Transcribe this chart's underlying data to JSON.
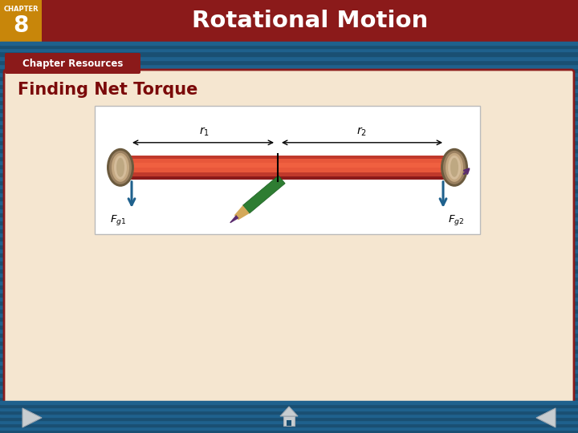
{
  "title": "Rotational Motion",
  "chapter_label": "CHAPTER",
  "chapter_number": "8",
  "section_label": "Chapter Resources",
  "subtitle": "Finding Net Torque",
  "header_bg_color": "#8B1A1A",
  "header_text_color": "#FFFFFF",
  "chapter_box_color": "#C8860A",
  "section_tab_color": "#8B1A1A",
  "section_tab_text_color": "#FFFFFF",
  "nav_bar_color": "#1A4F72",
  "nav_stripe_color": "#1F618D",
  "main_bg_color": "#F5E6D0",
  "main_border_color": "#8B1A1A",
  "subtitle_color": "#7B0A0A",
  "content_bg_color": "#FFFFFF",
  "content_border_color": "#CCCCCC",
  "arrow_color": "#1F618D",
  "rod_color_top": "#B03A2E",
  "rod_color_mid": "#E8573A",
  "rod_color_bot": "#B03A2E",
  "pencil_body": "#2E7D32",
  "pencil_wood": "#D4A95A",
  "pencil_tip": "#5B2C6F"
}
